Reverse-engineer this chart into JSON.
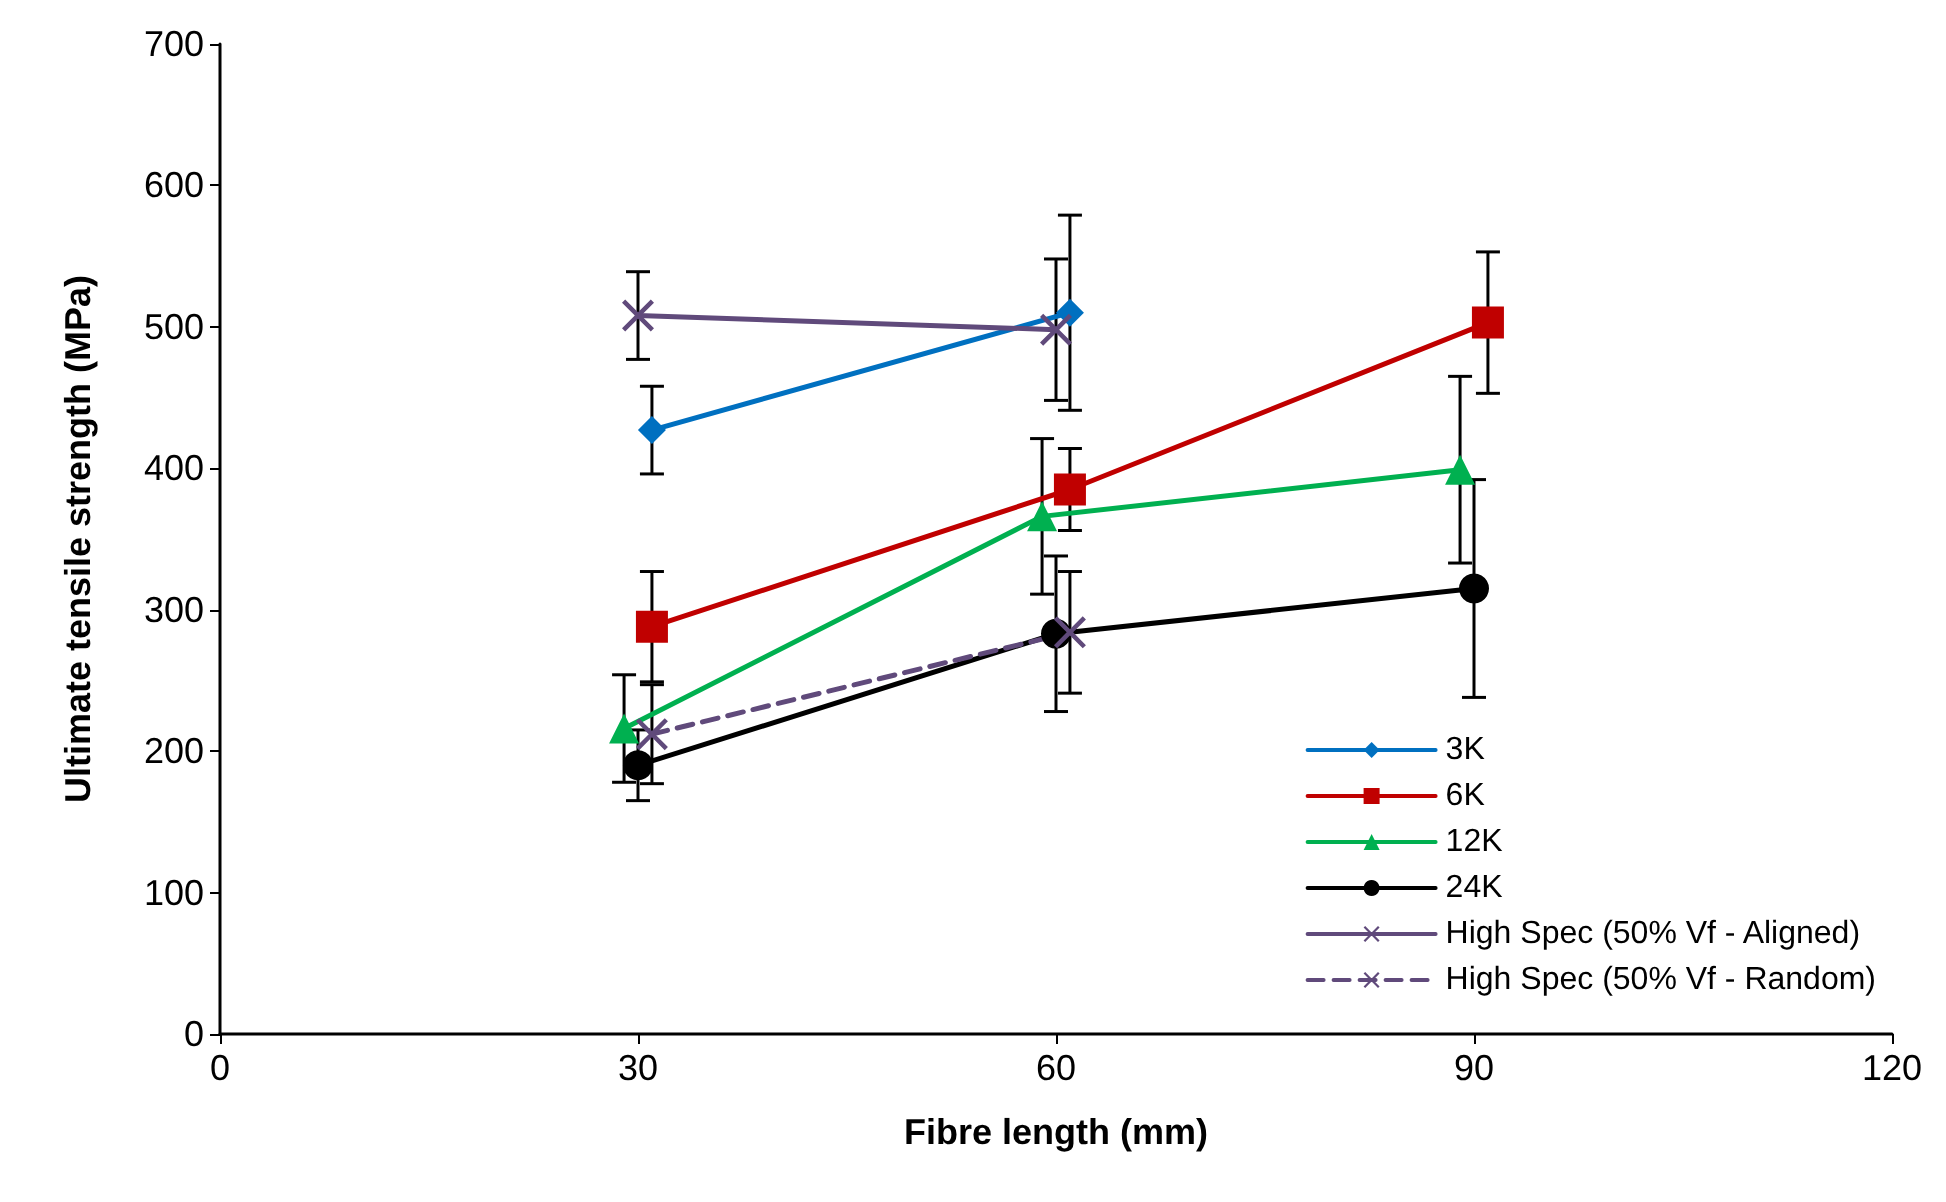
{
  "chart_data": {
    "type": "line",
    "xlabel": "Fibre length (mm)",
    "ylabel": "Ultimate tensile strength (MPa)",
    "xlim": [
      0,
      120
    ],
    "xticks": [
      0,
      30,
      60,
      90,
      120
    ],
    "ylim": [
      0,
      700
    ],
    "yticks": [
      0,
      100,
      200,
      300,
      400,
      500,
      600,
      700
    ],
    "grid": false,
    "legend": "bottom right",
    "line_style": "solid",
    "series": [
      {
        "name": "3K",
        "color": "#0070c0",
        "marker": "diamond",
        "x": [
          31,
          61
        ],
        "values": [
          427,
          510
        ],
        "errors": [
          31,
          69
        ]
      },
      {
        "name": "6K",
        "color": "#c00000",
        "marker": "square",
        "x": [
          31,
          61,
          91
        ],
        "values": [
          288,
          385,
          503
        ],
        "errors": [
          39,
          29,
          50
        ]
      },
      {
        "name": "12K",
        "color": "#00b050",
        "marker": "triangle",
        "x": [
          29,
          59,
          89
        ],
        "values": [
          216,
          366,
          399
        ],
        "errors": [
          38,
          55,
          66
        ]
      },
      {
        "name": "24K",
        "color": "#000000",
        "marker": "circle",
        "x": [
          30,
          60,
          90
        ],
        "values": [
          190,
          283,
          315
        ],
        "errors": [
          25,
          55,
          77
        ]
      },
      {
        "name": "High Spec (50% Vf - Aligned)",
        "color": "#604a7b",
        "marker": "cross",
        "x": [
          30,
          60
        ],
        "values": [
          508,
          498
        ],
        "errors": [
          31,
          50
        ]
      },
      {
        "name": "High Spec (50% Vf - Random)",
        "color": "#604a7b",
        "marker": "cross",
        "line_style": "dashed",
        "x": [
          31,
          61
        ],
        "values": [
          212,
          284
        ],
        "errors": [
          35,
          43
        ]
      }
    ]
  }
}
